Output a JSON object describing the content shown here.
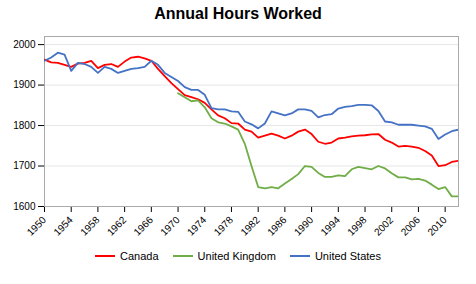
{
  "chart_data": {
    "type": "line",
    "title": "Annual Hours Worked",
    "x": [
      1950,
      1951,
      1952,
      1953,
      1954,
      1955,
      1956,
      1957,
      1958,
      1959,
      1960,
      1961,
      1962,
      1963,
      1964,
      1965,
      1966,
      1967,
      1968,
      1969,
      1970,
      1971,
      1972,
      1973,
      1974,
      1975,
      1976,
      1977,
      1978,
      1979,
      1980,
      1981,
      1982,
      1983,
      1984,
      1985,
      1986,
      1987,
      1988,
      1989,
      1990,
      1991,
      1992,
      1993,
      1994,
      1995,
      1996,
      1997,
      1998,
      1999,
      2000,
      2001,
      2002,
      2003,
      2004,
      2005,
      2006,
      2007,
      2008,
      2009,
      2010,
      2011,
      2012
    ],
    "series": [
      {
        "name": "Canada",
        "color": "#FF0000",
        "values": [
          1963,
          1956,
          1955,
          1950,
          1945,
          1953,
          1955,
          1960,
          1942,
          1950,
          1952,
          1945,
          1958,
          1968,
          1970,
          1966,
          1960,
          1940,
          1922,
          1905,
          1890,
          1875,
          1870,
          1865,
          1856,
          1840,
          1825,
          1818,
          1806,
          1805,
          1790,
          1785,
          1770,
          1775,
          1780,
          1775,
          1768,
          1775,
          1785,
          1790,
          1779,
          1760,
          1755,
          1758,
          1768,
          1770,
          1773,
          1775,
          1776,
          1778,
          1779,
          1765,
          1758,
          1748,
          1750,
          1748,
          1745,
          1737,
          1726,
          1700,
          1702,
          1710,
          1713
        ]
      },
      {
        "name": "United Kingdom",
        "color": "#70AD47",
        "values": [
          null,
          null,
          null,
          null,
          null,
          null,
          null,
          null,
          null,
          null,
          null,
          null,
          null,
          null,
          null,
          null,
          null,
          null,
          null,
          null,
          1880,
          1870,
          1860,
          1862,
          1845,
          1818,
          1808,
          1805,
          1798,
          1790,
          1755,
          1700,
          1648,
          1645,
          1648,
          1645,
          1657,
          1668,
          1680,
          1700,
          1698,
          1683,
          1673,
          1673,
          1677,
          1675,
          1692,
          1698,
          1695,
          1692,
          1700,
          1694,
          1682,
          1672,
          1672,
          1667,
          1668,
          1664,
          1654,
          1643,
          1648,
          1625,
          1625
        ]
      },
      {
        "name": "United States",
        "color": "#4472C4",
        "values": [
          1960,
          1968,
          1980,
          1975,
          1935,
          1955,
          1952,
          1945,
          1930,
          1945,
          1940,
          1930,
          1935,
          1940,
          1942,
          1945,
          1960,
          1950,
          1930,
          1920,
          1910,
          1895,
          1888,
          1888,
          1876,
          1843,
          1840,
          1840,
          1835,
          1834,
          1810,
          1803,
          1793,
          1805,
          1835,
          1830,
          1825,
          1830,
          1840,
          1840,
          1836,
          1820,
          1826,
          1828,
          1842,
          1846,
          1848,
          1851,
          1851,
          1850,
          1836,
          1810,
          1808,
          1802,
          1802,
          1802,
          1800,
          1798,
          1792,
          1767,
          1778,
          1786,
          1790
        ]
      }
    ],
    "xlim": [
      1950,
      2012
    ],
    "xticks": [
      1950,
      1954,
      1958,
      1962,
      1966,
      1970,
      1974,
      1978,
      1982,
      1986,
      1990,
      1994,
      1998,
      2002,
      2006,
      2010
    ],
    "ylim": [
      1600,
      2020
    ],
    "yticks": [
      1600,
      1700,
      1800,
      1900,
      2000
    ],
    "grid": true,
    "legend": "bottom"
  }
}
